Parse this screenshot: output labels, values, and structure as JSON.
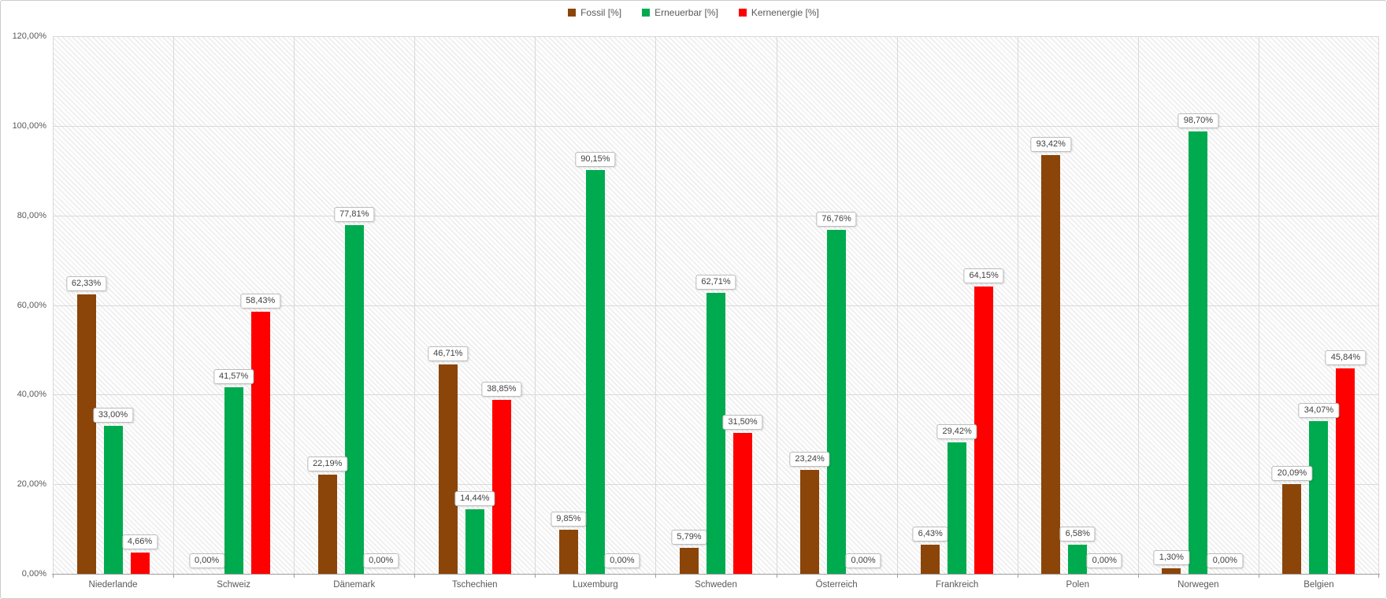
{
  "chart_data": {
    "type": "bar",
    "title": "",
    "xlabel": "",
    "ylabel": "",
    "categories": [
      "Niederlande",
      "Schweiz",
      "Dänemark",
      "Tschechien",
      "Luxemburg",
      "Schweden",
      "Österreich",
      "Frankreich",
      "Polen",
      "Norwegen",
      "Belgien"
    ],
    "series": [
      {
        "name": "Fossil [%]",
        "color": "#8B4509",
        "values": [
          62.33,
          0.0,
          22.19,
          46.71,
          9.85,
          5.79,
          23.24,
          6.43,
          93.42,
          1.3,
          20.09
        ],
        "value_labels": [
          "62,33%",
          "0,00%",
          "22,19%",
          "46,71%",
          "9,85%",
          "5,79%",
          "23,24%",
          "6,43%",
          "93,42%",
          "1,30%",
          "20,09%"
        ]
      },
      {
        "name": "Erneuerbar [%]",
        "color": "#00AB4F",
        "values": [
          33.0,
          41.57,
          77.81,
          14.44,
          90.15,
          62.71,
          76.76,
          29.42,
          6.58,
          98.7,
          34.07
        ],
        "value_labels": [
          "33,00%",
          "41,57%",
          "77,81%",
          "14,44%",
          "90,15%",
          "62,71%",
          "76,76%",
          "29,42%",
          "6,58%",
          "98,70%",
          "34,07%"
        ]
      },
      {
        "name": "Kernenergie [%]",
        "color": "#FF0000",
        "values": [
          4.66,
          58.43,
          0.0,
          38.85,
          0.0,
          31.5,
          0.0,
          64.15,
          0.0,
          0.0,
          45.84
        ],
        "value_labels": [
          "4,66%",
          "58,43%",
          "0,00%",
          "38,85%",
          "0,00%",
          "31,50%",
          "0,00%",
          "64,15%",
          "0,00%",
          "0,00%",
          "45,84%"
        ]
      }
    ],
    "ylim": [
      0,
      120
    ],
    "yticks": [
      0,
      20,
      40,
      60,
      80,
      100,
      120
    ],
    "ytick_labels": [
      "0,00%",
      "20,00%",
      "40,00%",
      "60,00%",
      "80,00%",
      "100,00%",
      "120,00%"
    ],
    "grid": "horizontal gridlines every 20% + vertical category separators",
    "legend_position": "top-center",
    "plot_background": "light diagonal hatch",
    "value_label_style": "white rounded box above each bar, German decimal comma"
  },
  "colors": {
    "fossil": "#8B4509",
    "erneuerbar": "#00AB4F",
    "kernenergie": "#FF0000",
    "gridline": "#D9D9D9",
    "axis_line": "#9E9E9E",
    "axis_text": "#595959",
    "label_border": "#BDBDBD",
    "label_text": "#404040"
  }
}
